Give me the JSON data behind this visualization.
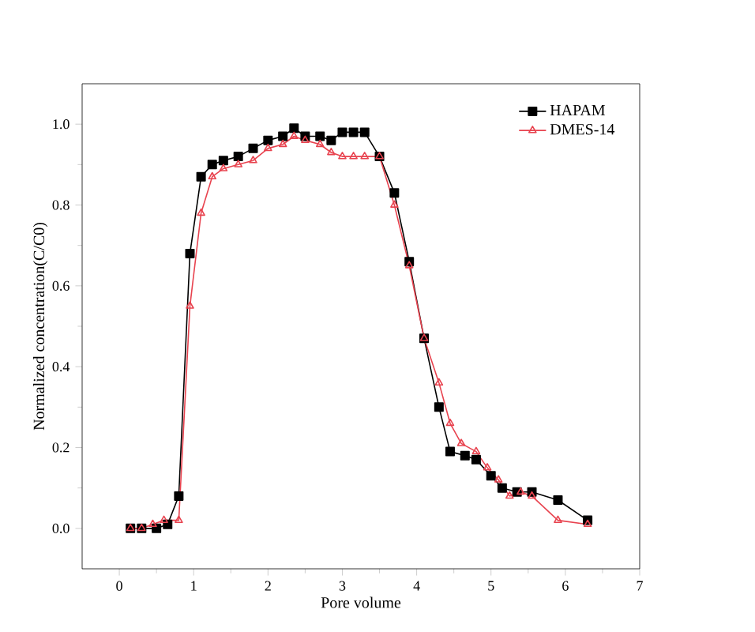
{
  "chart_data": {
    "type": "line",
    "xlabel": "Pore volume",
    "ylabel": "Normalized concentration(C/C0)",
    "xlim": [
      -0.5,
      7
    ],
    "ylim": [
      -0.1,
      1.1
    ],
    "xticks": [
      0,
      1,
      2,
      3,
      4,
      5,
      6,
      7
    ],
    "yticks": [
      {
        "value": 0,
        "label": "0.0"
      },
      {
        "value": 0.2,
        "label": "0.2"
      },
      {
        "value": 0.4,
        "label": "0.4"
      },
      {
        "value": 0.6,
        "label": "0.6"
      },
      {
        "value": 0.8,
        "label": "0.8"
      },
      {
        "value": 1,
        "label": "1.0"
      }
    ],
    "legend": "top right",
    "grid": false,
    "series": [
      {
        "name": "HAPAM",
        "color": "#000000",
        "marker": "square",
        "x": [
          0.15,
          0.3,
          0.5,
          0.65,
          0.8,
          0.95,
          1.1,
          1.25,
          1.4,
          1.6,
          1.8,
          2.0,
          2.2,
          2.35,
          2.5,
          2.7,
          2.85,
          3.0,
          3.15,
          3.3,
          3.5,
          3.7,
          3.9,
          4.1,
          4.3,
          4.45,
          4.65,
          4.8,
          5.0,
          5.15,
          5.35,
          5.55,
          5.9,
          6.3
        ],
        "values": [
          0,
          0,
          0,
          0.01,
          0.08,
          0.68,
          0.87,
          0.9,
          0.91,
          0.92,
          0.94,
          0.96,
          0.97,
          0.99,
          0.97,
          0.97,
          0.96,
          0.98,
          0.98,
          0.98,
          0.92,
          0.83,
          0.66,
          0.47,
          0.3,
          0.19,
          0.18,
          0.17,
          0.13,
          0.1,
          0.09,
          0.09,
          0.07,
          0.02
        ]
      },
      {
        "name": "DMES-14",
        "color": "#e8434f",
        "marker": "triangle",
        "x": [
          0.15,
          0.3,
          0.45,
          0.6,
          0.8,
          0.95,
          1.1,
          1.25,
          1.4,
          1.6,
          1.8,
          2.0,
          2.2,
          2.35,
          2.5,
          2.7,
          2.85,
          3.0,
          3.15,
          3.3,
          3.5,
          3.7,
          3.9,
          4.1,
          4.3,
          4.45,
          4.6,
          4.8,
          4.95,
          5.1,
          5.25,
          5.4,
          5.55,
          5.9,
          6.3
        ],
        "values": [
          0,
          0,
          0.01,
          0.02,
          0.02,
          0.55,
          0.78,
          0.87,
          0.89,
          0.9,
          0.91,
          0.94,
          0.95,
          0.97,
          0.96,
          0.95,
          0.93,
          0.92,
          0.92,
          0.92,
          0.92,
          0.8,
          0.65,
          0.47,
          0.36,
          0.26,
          0.21,
          0.19,
          0.15,
          0.12,
          0.08,
          0.09,
          0.08,
          0.02,
          0.01
        ]
      }
    ]
  }
}
